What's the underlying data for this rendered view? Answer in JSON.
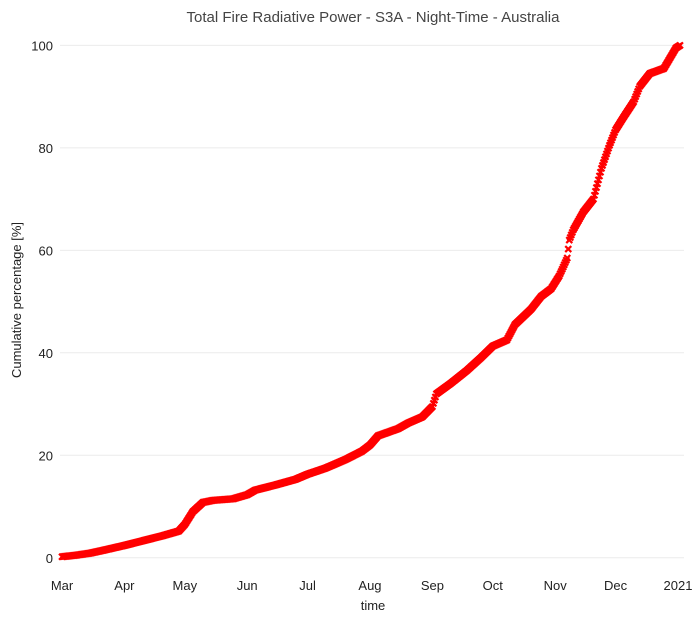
{
  "chart_data": {
    "type": "scatter",
    "title": "Total Fire Radiative Power - S3A - Night-Time - Australia",
    "xlabel": "time",
    "ylabel": "Cumulative percentage [%]",
    "marker": "x",
    "color": "#ff0000",
    "grid": true,
    "xlim": [
      "2020-02-29",
      "2021-01-04"
    ],
    "ylim": [
      -2,
      103
    ],
    "xticks": [
      {
        "date": "2020-03-01",
        "label": "Mar"
      },
      {
        "date": "2020-04-01",
        "label": "Apr"
      },
      {
        "date": "2020-05-01",
        "label": "May"
      },
      {
        "date": "2020-06-01",
        "label": "Jun"
      },
      {
        "date": "2020-07-01",
        "label": "Jul"
      },
      {
        "date": "2020-08-01",
        "label": "Aug"
      },
      {
        "date": "2020-09-01",
        "label": "Sep"
      },
      {
        "date": "2020-10-01",
        "label": "Oct"
      },
      {
        "date": "2020-11-01",
        "label": "Nov"
      },
      {
        "date": "2020-12-01",
        "label": "Dec"
      },
      {
        "date": "2021-01-01",
        "label": "2021"
      }
    ],
    "yticks": [
      0,
      20,
      40,
      60,
      80,
      100
    ],
    "curve": [
      [
        "2020-03-01",
        0.2
      ],
      [
        "2020-03-08",
        0.5
      ],
      [
        "2020-03-15",
        0.9
      ],
      [
        "2020-03-22",
        1.5
      ],
      [
        "2020-04-01",
        2.4
      ],
      [
        "2020-04-10",
        3.3
      ],
      [
        "2020-04-20",
        4.3
      ],
      [
        "2020-04-28",
        5.2
      ],
      [
        "2020-05-01",
        6.5
      ],
      [
        "2020-05-05",
        9.0
      ],
      [
        "2020-05-10",
        10.8
      ],
      [
        "2020-05-15",
        11.2
      ],
      [
        "2020-05-25",
        11.5
      ],
      [
        "2020-06-01",
        12.3
      ],
      [
        "2020-06-05",
        13.2
      ],
      [
        "2020-06-15",
        14.2
      ],
      [
        "2020-06-25",
        15.3
      ],
      [
        "2020-07-01",
        16.3
      ],
      [
        "2020-07-10",
        17.5
      ],
      [
        "2020-07-20",
        19.2
      ],
      [
        "2020-07-28",
        20.8
      ],
      [
        "2020-08-01",
        22.0
      ],
      [
        "2020-08-05",
        23.8
      ],
      [
        "2020-08-10",
        24.5
      ],
      [
        "2020-08-15",
        25.2
      ],
      [
        "2020-08-20",
        26.3
      ],
      [
        "2020-08-27",
        27.5
      ],
      [
        "2020-09-01",
        29.5
      ],
      [
        "2020-09-03",
        32.0
      ],
      [
        "2020-09-10",
        34.0
      ],
      [
        "2020-09-18",
        36.5
      ],
      [
        "2020-09-25",
        39.0
      ],
      [
        "2020-10-01",
        41.3
      ],
      [
        "2020-10-08",
        42.5
      ],
      [
        "2020-10-12",
        45.5
      ],
      [
        "2020-10-20",
        48.5
      ],
      [
        "2020-10-25",
        51.0
      ],
      [
        "2020-10-30",
        52.5
      ],
      [
        "2020-11-03",
        55.0
      ],
      [
        "2020-11-07",
        58.5
      ],
      [
        "2020-11-08",
        62.0
      ],
      [
        "2020-11-10",
        64.0
      ],
      [
        "2020-11-15",
        67.5
      ],
      [
        "2020-11-20",
        70.0
      ],
      [
        "2020-11-22",
        73.0
      ],
      [
        "2020-11-24",
        76.0
      ],
      [
        "2020-11-28",
        80.5
      ],
      [
        "2020-12-01",
        83.5
      ],
      [
        "2020-12-05",
        86.0
      ],
      [
        "2020-12-10",
        89.0
      ],
      [
        "2020-12-13",
        92.0
      ],
      [
        "2020-12-18",
        94.5
      ],
      [
        "2020-12-25",
        95.5
      ],
      [
        "2020-12-28",
        97.5
      ],
      [
        "2020-12-31",
        99.5
      ],
      [
        "2021-01-02",
        100.0
      ]
    ]
  }
}
